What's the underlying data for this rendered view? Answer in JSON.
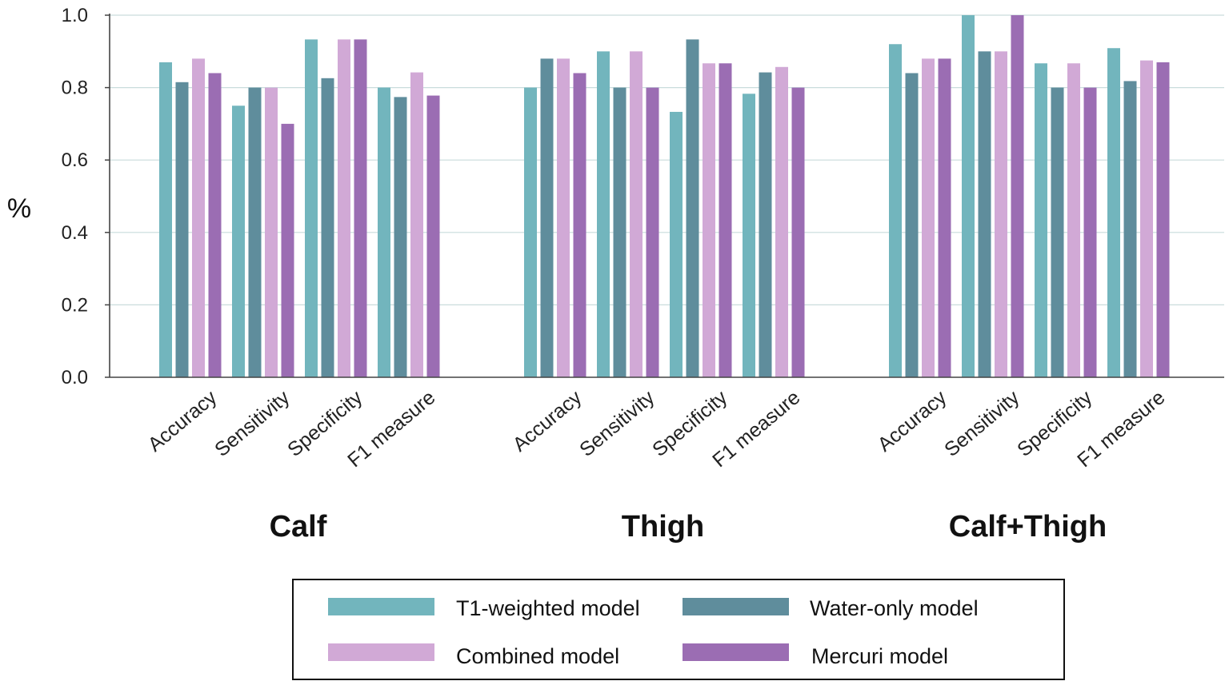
{
  "chart_data": {
    "type": "bar",
    "title": "",
    "xlabel": "",
    "ylabel": "%",
    "ylim": [
      0,
      1.0
    ],
    "yticks": [
      "0.0",
      "0.2",
      "0.4",
      "0.6",
      "0.8",
      "1.0"
    ],
    "grid": true,
    "legend_position": "bottom-center",
    "groups": [
      {
        "name": "Calf",
        "categories": [
          "Accuracy",
          "Sensitivity",
          "Specificity",
          "F1 measure"
        ],
        "series": [
          {
            "name": "T1-weighted model",
            "values": [
              0.87,
              0.75,
              0.933,
              0.8
            ]
          },
          {
            "name": "Water-only model",
            "values": [
              0.815,
              0.8,
              0.826,
              0.774
            ]
          },
          {
            "name": "Combined model",
            "values": [
              0.88,
              0.8,
              0.933,
              0.842
            ]
          },
          {
            "name": "Mercuri model",
            "values": [
              0.84,
              0.7,
              0.933,
              0.778
            ]
          }
        ]
      },
      {
        "name": "Thigh",
        "categories": [
          "Accuracy",
          "Sensitivity",
          "Specificity",
          "F1 measure"
        ],
        "series": [
          {
            "name": "T1-weighted model",
            "values": [
              0.8,
              0.9,
              0.733,
              0.783
            ]
          },
          {
            "name": "Water-only model",
            "values": [
              0.88,
              0.8,
              0.933,
              0.842
            ]
          },
          {
            "name": "Combined model",
            "values": [
              0.88,
              0.9,
              0.867,
              0.857
            ]
          },
          {
            "name": "Mercuri model",
            "values": [
              0.84,
              0.8,
              0.867,
              0.8
            ]
          }
        ]
      },
      {
        "name": "Calf+Thigh",
        "categories": [
          "Accuracy",
          "Sensitivity",
          "Specificity",
          "F1 measure"
        ],
        "series": [
          {
            "name": "T1-weighted model",
            "values": [
              0.92,
              1.0,
              0.867,
              0.909
            ]
          },
          {
            "name": "Water-only model",
            "values": [
              0.84,
              0.9,
              0.8,
              0.818
            ]
          },
          {
            "name": "Combined model",
            "values": [
              0.88,
              0.9,
              0.867,
              0.875
            ]
          },
          {
            "name": "Mercuri model",
            "values": [
              0.88,
              1.0,
              0.8,
              0.87
            ]
          }
        ]
      }
    ],
    "legend": [
      {
        "name": "T1-weighted model",
        "color": "#72b5bd"
      },
      {
        "name": "Water-only model",
        "color": "#5f8d9c"
      },
      {
        "name": "Combined model",
        "color": "#d1a9d6"
      },
      {
        "name": "Mercuri model",
        "color": "#9b6db3"
      }
    ]
  }
}
